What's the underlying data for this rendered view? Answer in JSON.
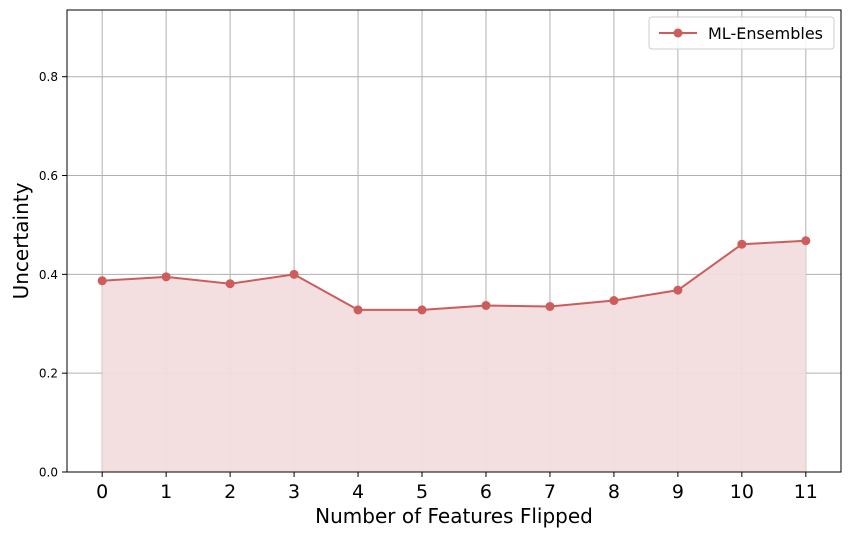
{
  "chart_data": {
    "type": "line",
    "title": "",
    "xlabel": "Number of Features Flipped",
    "ylabel": "Uncertainty",
    "x": [
      0,
      1,
      2,
      3,
      4,
      5,
      6,
      7,
      8,
      9,
      10,
      11
    ],
    "xtick_labels": [
      "0",
      "1",
      "2",
      "3",
      "4",
      "5",
      "6",
      "7",
      "8",
      "9",
      "10",
      "11"
    ],
    "ytick_labels": [
      "0.0",
      "0.2",
      "0.4",
      "0.6",
      "0.8"
    ],
    "yticks": [
      0.0,
      0.2,
      0.4,
      0.6,
      0.8
    ],
    "xlim": [
      -0.55,
      11.55
    ],
    "ylim": [
      0.0,
      0.935
    ],
    "grid": true,
    "legend_position": "top-right",
    "fill_under": true,
    "series": [
      {
        "name": "ML-Ensembles",
        "color": "#cd5c5c",
        "fill_color": "#f2dddd",
        "marker": "circle",
        "values": [
          0.387,
          0.395,
          0.381,
          0.4,
          0.328,
          0.328,
          0.337,
          0.335,
          0.347,
          0.368,
          0.461,
          0.468
        ]
      }
    ]
  }
}
